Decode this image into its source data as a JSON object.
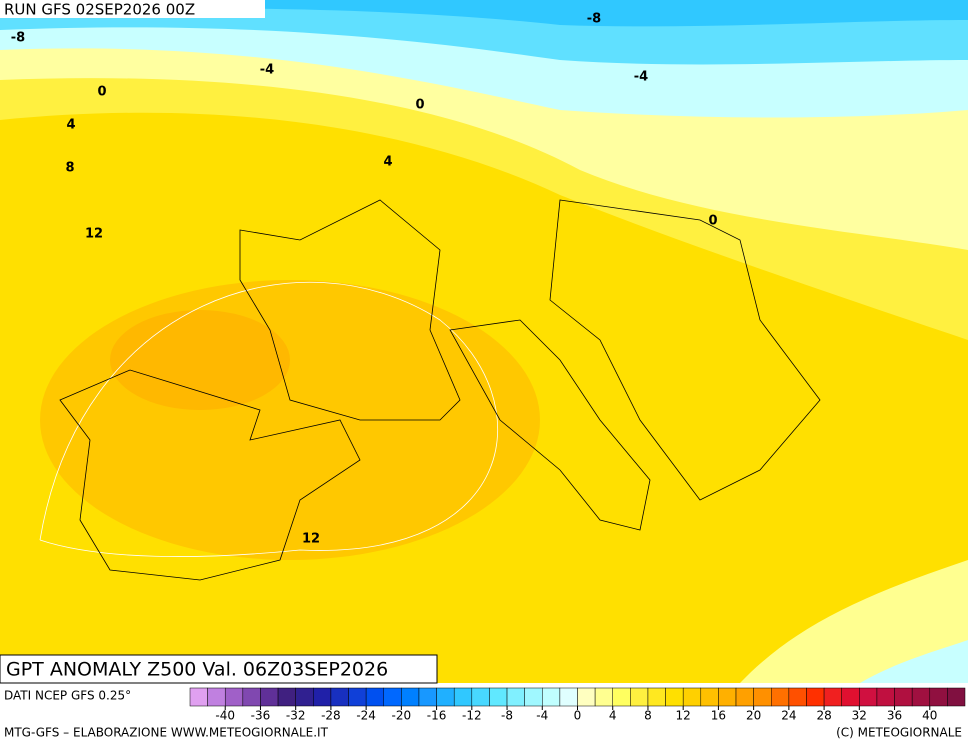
{
  "header": {
    "run": "RUN GFS 02SEP2026 00Z"
  },
  "map": {
    "contour_labels": [
      -8,
      -4,
      0,
      4,
      8,
      12,
      0,
      4,
      -8,
      -4,
      0,
      12
    ]
  },
  "title": "GPT ANOMALY Z500 Val. 06Z03SEP2026",
  "source": "DATI NCEP GFS 0.25°",
  "colorbar": {
    "lim": [
      -44,
      44
    ],
    "ticks": [
      -40,
      -36,
      -32,
      -28,
      -24,
      -20,
      -16,
      -12,
      -8,
      -4,
      0,
      4,
      8,
      12,
      16,
      20,
      24,
      28,
      32,
      36,
      40
    ],
    "colors": [
      "#e0a0f0",
      "#c080e0",
      "#a060c8",
      "#8048b0",
      "#603098",
      "#402080",
      "#302090",
      "#2020a8",
      "#1830c0",
      "#1040d8",
      "#0050f0",
      "#0068ff",
      "#0080ff",
      "#1898ff",
      "#20b0ff",
      "#30c8ff",
      "#48d8ff",
      "#60e8ff",
      "#80f0ff",
      "#a0f8ff",
      "#c0ffff",
      "#e0ffff",
      "#ffffc0",
      "#ffff90",
      "#ffff60",
      "#fff040",
      "#ffe820",
      "#ffe000",
      "#ffd000",
      "#ffc000",
      "#ffb000",
      "#ffa000",
      "#ff9000",
      "#ff7000",
      "#ff5000",
      "#ff3000",
      "#f02020",
      "#e01030",
      "#d01040",
      "#c01040",
      "#b01040",
      "#a01040",
      "#901040",
      "#801040"
    ]
  },
  "footer": {
    "left": "MTG-GFS – ELABORAZIONE WWW.METEOGIORNALE.IT",
    "right": "(C) METEOGIORNALE"
  }
}
